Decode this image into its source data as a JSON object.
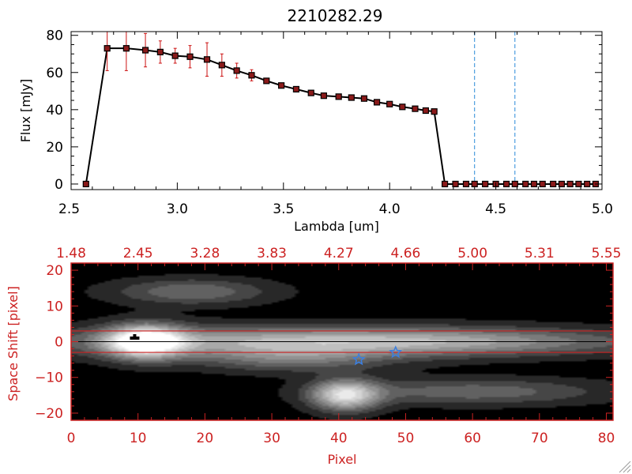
{
  "colors": {
    "axis_red": "#cc2222",
    "errorbar_red": "#cc1111",
    "vline_blue": "#2a8ad8",
    "star_blue": "#3b7fe0",
    "line_black": "#000000"
  },
  "chart_data": [
    {
      "type": "line",
      "title": "2210282.29",
      "xlabel": "Lambda [um]",
      "ylabel": "Flux [mJy]",
      "xlim": [
        2.5,
        5.0
      ],
      "ylim": [
        -3,
        82
      ],
      "x_ticks": [
        "2.5",
        "3.0",
        "3.5",
        "4.0",
        "4.5",
        "5.0"
      ],
      "x_tick_values": [
        2.5,
        3.0,
        3.5,
        4.0,
        4.5,
        5.0
      ],
      "y_ticks": [
        "0",
        "20",
        "40",
        "60",
        "80"
      ],
      "y_tick_values": [
        0,
        20,
        40,
        60,
        80
      ],
      "vertical_lines": [
        4.4,
        4.59
      ],
      "series": [
        {
          "x": [
            2.57,
            2.67,
            2.76,
            2.85,
            2.92,
            2.99,
            3.06,
            3.14,
            3.21,
            3.28,
            3.35,
            3.42,
            3.49,
            3.56,
            3.63,
            3.69,
            3.76,
            3.82,
            3.88,
            3.94,
            4.0,
            4.06,
            4.12,
            4.17,
            4.21,
            4.26,
            4.31,
            4.36,
            4.4,
            4.45,
            4.5,
            4.55,
            4.59,
            4.64,
            4.68,
            4.72,
            4.77,
            4.81,
            4.85,
            4.89,
            4.93,
            4.97
          ],
          "y": [
            0,
            73,
            73,
            72,
            71,
            69,
            68.5,
            67,
            64,
            61,
            58.5,
            55.5,
            53,
            51,
            49,
            47.5,
            47,
            46.5,
            46,
            44,
            43,
            41.5,
            40.5,
            39.5,
            39,
            0,
            0,
            0,
            0,
            0,
            0,
            0,
            0,
            0,
            0,
            0,
            0,
            0,
            0,
            0,
            0,
            0
          ],
          "yerr": [
            0,
            12,
            12,
            9,
            6,
            4,
            6,
            9,
            6,
            4,
            3,
            1,
            1,
            1,
            1,
            1,
            1,
            1,
            1,
            1,
            1,
            1,
            1,
            1,
            1,
            0,
            0,
            0,
            0,
            0,
            0,
            0,
            0,
            0,
            0,
            0,
            0,
            0,
            0,
            0,
            0,
            0
          ]
        }
      ]
    },
    {
      "type": "heatmap",
      "xlabel": "Pixel",
      "ylabel": "Space Shift [pixel]",
      "xlim": [
        0,
        81
      ],
      "ylim": [
        -22,
        22
      ],
      "x_ticks": [
        "0",
        "10",
        "20",
        "30",
        "40",
        "50",
        "60",
        "70",
        "80"
      ],
      "x_tick_values": [
        0,
        10,
        20,
        30,
        40,
        50,
        60,
        70,
        80
      ],
      "y_ticks": [
        "−20",
        "−10",
        "0",
        "10",
        "20"
      ],
      "y_tick_values": [
        -20,
        -10,
        0,
        10,
        20
      ],
      "top_ticks": [
        "1.48",
        "2.45",
        "3.28",
        "3.83",
        "4.27",
        "4.66",
        "5.00",
        "5.31",
        "5.55"
      ],
      "aperture_lines": [
        3,
        -3
      ],
      "markers": [
        {
          "x": 43,
          "y": -5,
          "symbol": "star"
        },
        {
          "x": 48.5,
          "y": -3,
          "symbol": "star"
        },
        {
          "x": 9.5,
          "y": 1,
          "symbol": "tick"
        }
      ],
      "sources": [
        {
          "x": 11,
          "y": 0,
          "peak": 1.0,
          "sx": 4,
          "sy": 3.2
        },
        {
          "x": 30,
          "y": 0,
          "peak": 0.55,
          "sx": 24,
          "sy": 3.0
        },
        {
          "x": 60,
          "y": 0,
          "peak": 0.35,
          "sx": 20,
          "sy": 2.6
        },
        {
          "x": 41,
          "y": -15,
          "peak": 0.8,
          "sx": 3.5,
          "sy": 3.0
        },
        {
          "x": 60,
          "y": -14,
          "peak": 0.32,
          "sx": 14,
          "sy": 2.5
        },
        {
          "x": 18,
          "y": 14,
          "peak": 0.35,
          "sx": 8,
          "sy": 2.5
        },
        {
          "x": 33,
          "y": -5,
          "peak": 0.3,
          "sx": 10,
          "sy": 2.5
        }
      ]
    }
  ]
}
